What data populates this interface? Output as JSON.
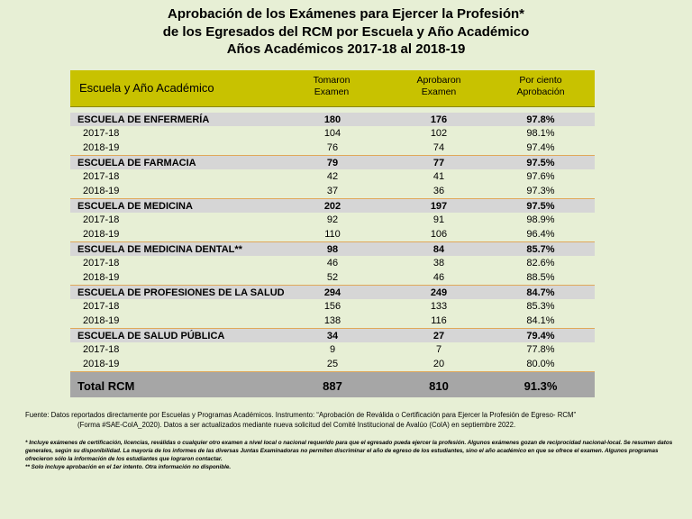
{
  "title": {
    "line1": "Aprobación de los Exámenes para Ejercer la Profesión*",
    "line2": "de los Egresados del RCM por Escuela y Año Académico",
    "line3": "Años Académicos 2017-18 al 2018-19"
  },
  "table": {
    "headers": {
      "school": "Escuela y Año Académico",
      "took_line1": "Tomaron",
      "took_line2": "Examen",
      "passed_line1": "Aprobaron",
      "passed_line2": "Examen",
      "pct_line1": "Por ciento",
      "pct_line2": "Aprobación"
    },
    "schools": [
      {
        "name": "ESCUELA DE ENFERMERÍA",
        "took": "180",
        "passed": "176",
        "pct": "97.8%",
        "years": [
          {
            "year": "2017-18",
            "took": "104",
            "passed": "102",
            "pct": "98.1%"
          },
          {
            "year": "2018-19",
            "took": "76",
            "passed": "74",
            "pct": "97.4%"
          }
        ]
      },
      {
        "name": "ESCUELA DE FARMACIA",
        "took": "79",
        "passed": "77",
        "pct": "97.5%",
        "years": [
          {
            "year": "2017-18",
            "took": "42",
            "passed": "41",
            "pct": "97.6%"
          },
          {
            "year": "2018-19",
            "took": "37",
            "passed": "36",
            "pct": "97.3%"
          }
        ]
      },
      {
        "name": "ESCUELA DE MEDICINA",
        "took": "202",
        "passed": "197",
        "pct": "97.5%",
        "years": [
          {
            "year": "2017-18",
            "took": "92",
            "passed": "91",
            "pct": "98.9%"
          },
          {
            "year": "2018-19",
            "took": "110",
            "passed": "106",
            "pct": "96.4%"
          }
        ]
      },
      {
        "name": "ESCUELA DE MEDICINA DENTAL**",
        "took": "98",
        "passed": "84",
        "pct": "85.7%",
        "years": [
          {
            "year": "2017-18",
            "took": "46",
            "passed": "38",
            "pct": "82.6%"
          },
          {
            "year": "2018-19",
            "took": "52",
            "passed": "46",
            "pct": "88.5%"
          }
        ]
      },
      {
        "name": "ESCUELA DE PROFESIONES DE LA SALUD",
        "took": "294",
        "passed": "249",
        "pct": "84.7%",
        "years": [
          {
            "year": "2017-18",
            "took": "156",
            "passed": "133",
            "pct": "85.3%"
          },
          {
            "year": "2018-19",
            "took": "138",
            "passed": "116",
            "pct": "84.1%"
          }
        ]
      },
      {
        "name": "ESCUELA DE SALUD PÚBLICA",
        "took": "34",
        "passed": "27",
        "pct": "79.4%",
        "years": [
          {
            "year": "2017-18",
            "took": "9",
            "passed": "7",
            "pct": "77.8%"
          },
          {
            "year": "2018-19",
            "took": "25",
            "passed": "20",
            "pct": "80.0%"
          }
        ]
      }
    ],
    "total": {
      "name": "Total RCM",
      "took": "887",
      "passed": "810",
      "pct": "91.3%"
    }
  },
  "source": {
    "line1": "Fuente: Datos reportados directamente por Escuelas y Programas Académicos. Instrumento: “Aprobación de Reválida o Certificación para Ejercer la Profesión de Egreso- RCM”",
    "line2": "(Forma #SAE-CoIA_2020). Datos a ser actualizados  mediante nueva solicitud del Comité Institucional de Avalúo (CoIA) en septiembre 2022."
  },
  "notes": {
    "note1": "* Incluye  exámenes de certificación, licencias, reválidas  o  cualquier otro examen a nivel local o nacional requerido para que el egresado pueda ejercer la profesión.  Algunos exámenes gozan de reciprocidad nacional-local. Se resumen datos generales, según su disponibilidad.  La mayoría de los informes de las diversas Juntas Examinadoras no permiten discriminar el año de egreso de los estudiantes, sino el año académico en que se ofrece el examen. Algunos programas ofrecieron sólo la información de los estudiantes que lograron contactar.",
    "note2": "** Solo incluye aprobación en el 1er intento. Otra información no disponible."
  },
  "colors": {
    "background": "#e7efd5",
    "header": "#c8c200",
    "school_row": "#d6d6d6",
    "total_row": "#a6a6a6",
    "separator": "#e0a85a"
  }
}
